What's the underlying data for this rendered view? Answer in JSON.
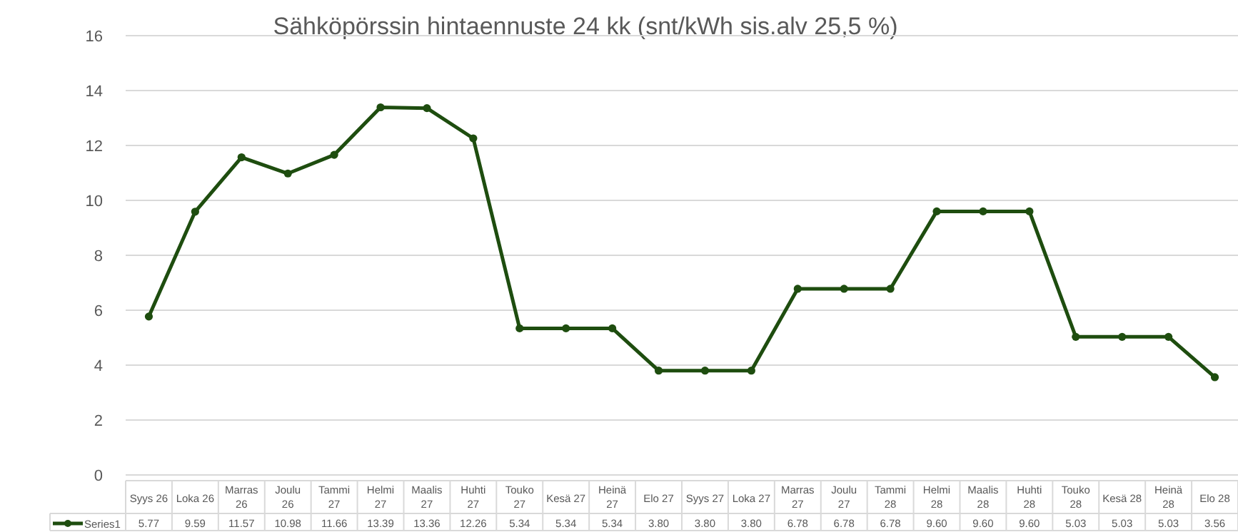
{
  "chart_data": {
    "type": "line",
    "title": "Sähköpörssin hintaennuste 24 kk (snt/kWh sis.alv 25,5 %)",
    "categories": [
      "Syys 26",
      "Loka 26",
      "Marras 26",
      "Joulu 26",
      "Tammi 27",
      "Helmi 27",
      "Maalis 27",
      "Huhti 27",
      "Touko 27",
      "Kesä 27",
      "Heinä 27",
      "Elo 27",
      "Syys 27",
      "Loka 27",
      "Marras 27",
      "Joulu 27",
      "Tammi 28",
      "Helmi 28",
      "Maalis 28",
      "Huhti 28",
      "Touko 28",
      "Kesä 28",
      "Heinä 28",
      "Elo 28"
    ],
    "series": [
      {
        "name": "Series1",
        "color": "#1e4d0f",
        "values": [
          5.77,
          9.59,
          11.57,
          10.98,
          11.66,
          13.39,
          13.36,
          12.26,
          5.34,
          5.34,
          5.34,
          3.8,
          3.8,
          3.8,
          6.78,
          6.78,
          6.78,
          9.6,
          9.6,
          9.6,
          5.03,
          5.03,
          5.03,
          3.56
        ],
        "value_labels": [
          "5.77",
          "9.59",
          "11.57",
          "10.98",
          "11.66",
          "13.39",
          "13.36",
          "12.26",
          "5.34",
          "5.34",
          "5.34",
          "3.80",
          "3.80",
          "3.80",
          "6.78",
          "6.78",
          "6.78",
          "9.60",
          "9.60",
          "9.60",
          "5.03",
          "5.03",
          "5.03",
          "3.56"
        ]
      }
    ],
    "ylim": [
      0,
      16
    ],
    "yticks": [
      0,
      2,
      4,
      6,
      8,
      10,
      12,
      14,
      16
    ],
    "grid": "y",
    "legend": "bottom",
    "marker": "circle",
    "line_style": "solid"
  }
}
